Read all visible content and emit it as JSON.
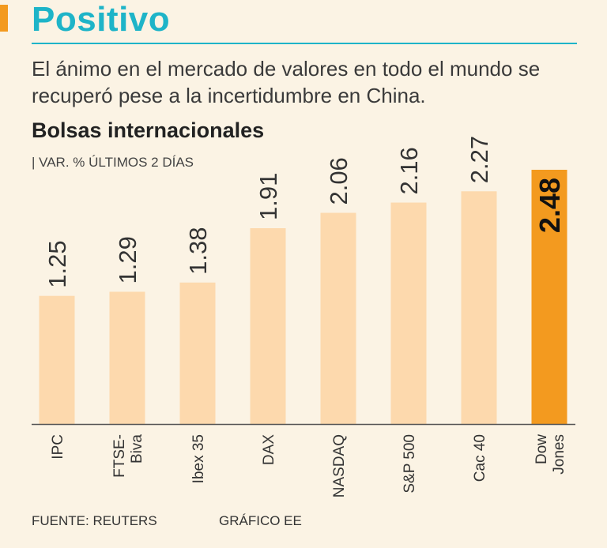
{
  "header": {
    "headline": "Positivo",
    "subtitle": "El ánimo en el mercado de valores en todo el mundo se recuperó pese a la incertidumbre en China."
  },
  "colors": {
    "accent": "#f39a1f",
    "headline": "#1eb4c8",
    "bar": "#fdd9ad",
    "bar_highlight": "#f39a1f",
    "background": "#fbf3e4"
  },
  "footer": {
    "source": "FUENTE: REUTERS",
    "credit": "GRÁFICO EE"
  },
  "chart_data": {
    "type": "bar",
    "title": "Bolsas internacionales",
    "subtitle": "| VAR. % ÚLTIMOS 2 DÍAS",
    "categories": [
      "IPC",
      "FTSE-Biva",
      "Ibex 35",
      "DAX",
      "NASDAQ",
      "S&P 500",
      "Cac 40",
      "Dow Jones"
    ],
    "category_lines": [
      [
        "IPC"
      ],
      [
        "FTSE-",
        "Biva"
      ],
      [
        "Ibex 35"
      ],
      [
        "DAX"
      ],
      [
        "NASDAQ"
      ],
      [
        "S&P 500"
      ],
      [
        "Cac 40"
      ],
      [
        "Dow",
        "Jones"
      ]
    ],
    "values": [
      1.25,
      1.29,
      1.38,
      1.91,
      2.06,
      2.16,
      2.27,
      2.48
    ],
    "data_labels": [
      "1.25",
      "1.29",
      "1.38",
      "1.91",
      "2.06",
      "2.16",
      "2.27",
      "2.48"
    ],
    "highlight_index": 7,
    "ylim": [
      0,
      2.48
    ],
    "grid": false,
    "legend": "none"
  }
}
